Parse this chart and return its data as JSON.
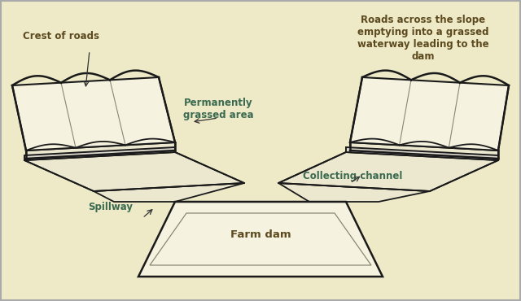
{
  "bg_color": "#eeeac8",
  "line_color": "#1a1a1a",
  "line_light": "#888877",
  "face_light": "#f5f2e0",
  "face_mid": "#ece8d0",
  "face_dark": "#dedad0",
  "text_dark": "#5c4a1e",
  "text_teal": "#3a6a50",
  "labels": {
    "crest": "Crest of roads",
    "grassed": "Permanently\ngrassed area",
    "roads_across": "Roads across the slope\nemptying into a grassed\nwaterway leading to the\ndam",
    "channel": "Collecting channel",
    "spillway": "Spillway",
    "dam": "Farm dam"
  }
}
